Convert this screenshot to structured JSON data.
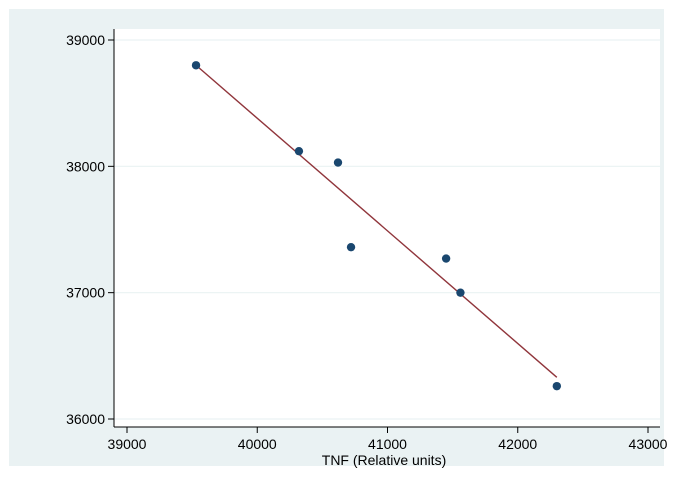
{
  "chart_data": {
    "type": "scatter",
    "title": "",
    "xlabel": "TNF (Relative units)",
    "ylabel": "",
    "xlim": [
      39000,
      43000
    ],
    "ylim": [
      36000,
      39000
    ],
    "x_ticks": [
      39000,
      40000,
      41000,
      42000,
      43000
    ],
    "y_ticks": [
      36000,
      37000,
      38000,
      39000
    ],
    "x_tick_labels": [
      "39000",
      "40000",
      "41000",
      "42000",
      "43000"
    ],
    "y_tick_labels": [
      "36000",
      "37000",
      "38000",
      "39000"
    ],
    "grid": true,
    "legend": "none",
    "series": [
      {
        "type": "scatter",
        "x": [
          39530,
          40320,
          40620,
          40720,
          41450,
          41560,
          42300
        ],
        "y": [
          38800,
          38120,
          38030,
          37360,
          37270,
          37000,
          36260
        ]
      },
      {
        "type": "line",
        "x": [
          39530,
          42300
        ],
        "y": [
          38800,
          36330
        ]
      }
    ],
    "colors": {
      "outer_background": "#eaf2f3",
      "plot_background": "#ffffff",
      "grid": "#eaf2f3",
      "axis": "#000000",
      "points": "#1a476f",
      "fit_line": "#90353b"
    }
  }
}
